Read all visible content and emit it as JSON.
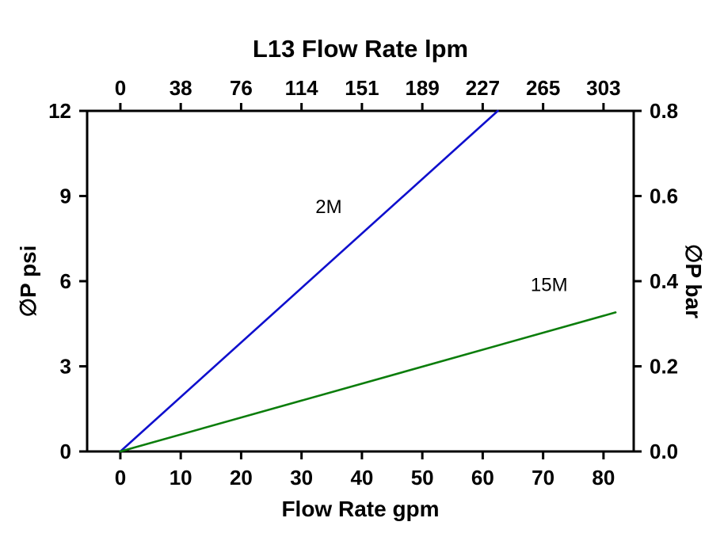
{
  "page": {
    "background": "#ffffff"
  },
  "chart_data": {
    "type": "line",
    "title": "L13 Flow Rate lpm",
    "xlabel": "Flow Rate gpm",
    "ylabel_left": "∅P psi",
    "ylabel_right": "∅P bar",
    "x_bottom_ticks": [
      0,
      10,
      20,
      30,
      40,
      50,
      60,
      70,
      80
    ],
    "x_top_ticks": [
      "0",
      "38",
      "76",
      "114",
      "151",
      "189",
      "227",
      "265",
      "303"
    ],
    "y_left_ticks": [
      0,
      3,
      6,
      9,
      12
    ],
    "y_right_ticks": [
      "0.0",
      "0.2",
      "0.4",
      "0.6",
      "0.8"
    ],
    "xlim": [
      -5.5,
      85
    ],
    "ylim": [
      0,
      12
    ],
    "grid": false,
    "axis_color": "#000000",
    "series": [
      {
        "name": "2M",
        "color": "#0f0fcd",
        "points": [
          [
            0,
            0
          ],
          [
            62.5,
            12
          ]
        ],
        "label_pos": [
          34.5,
          8.4
        ]
      },
      {
        "name": "15M",
        "color": "#0b7d0b",
        "points": [
          [
            0,
            0
          ],
          [
            82,
            4.9
          ]
        ],
        "label_pos": [
          71,
          5.65
        ]
      }
    ]
  }
}
